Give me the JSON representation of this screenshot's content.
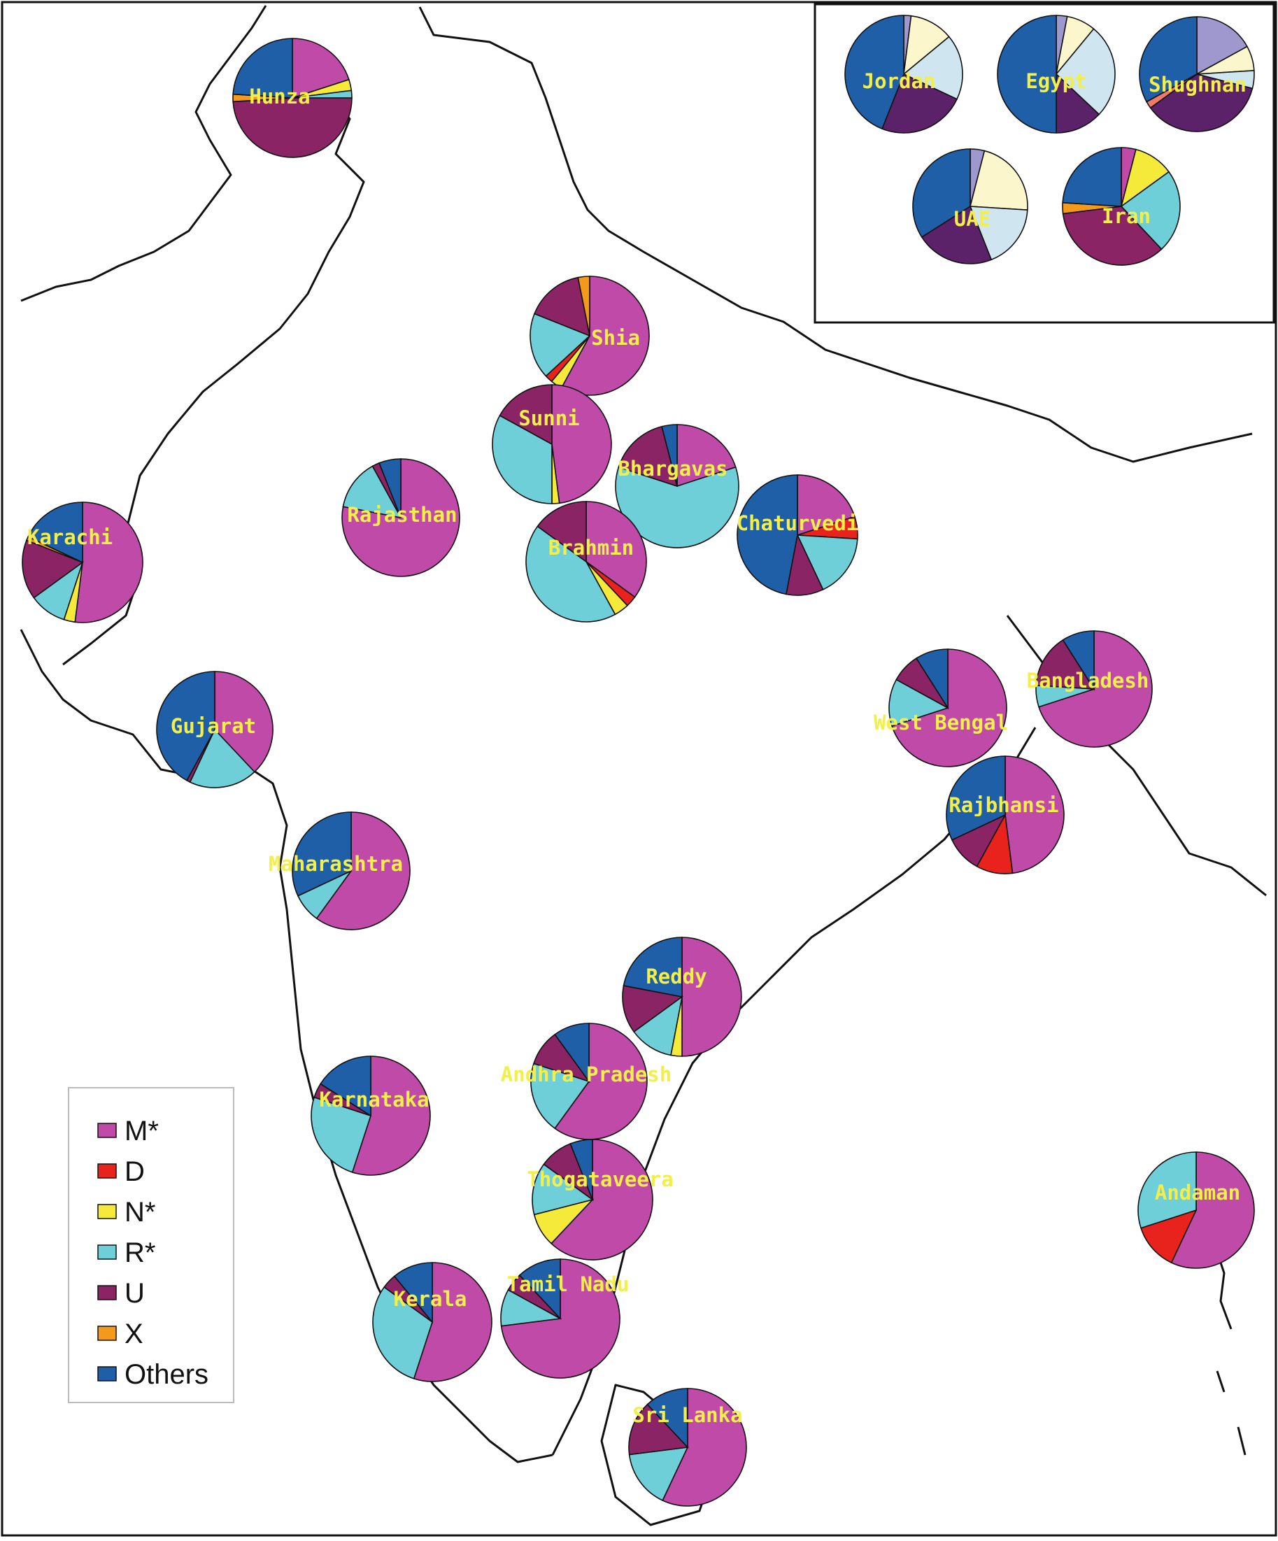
{
  "colors": {
    "M*": "#c04aa8",
    "D": "#e8231e",
    "N*": "#f5e93a",
    "R*": "#6fcfd8",
    "U": "#8a2465",
    "X": "#f39a1c",
    "Others": "#1f5fa8",
    "pale_yellow": "#fbf6cc",
    "pale_blue": "#cfe6f1",
    "lavender": "#9e98cf",
    "dark_purple": "#5b2169",
    "salmon": "#f07a6a"
  },
  "legend": {
    "items": [
      {
        "key": "M*",
        "label": "M*"
      },
      {
        "key": "D",
        "label": "D"
      },
      {
        "key": "N*",
        "label": "N*"
      },
      {
        "key": "R*",
        "label": "R*"
      },
      {
        "key": "U",
        "label": "U"
      },
      {
        "key": "X",
        "label": "X"
      },
      {
        "key": "Others",
        "label": "Others"
      }
    ]
  },
  "inset": {
    "pies": [
      {
        "name": "Jordan",
        "slices": [
          {
            "c": "lavender",
            "v": 0.02
          },
          {
            "c": "pale_yellow",
            "v": 0.12
          },
          {
            "c": "pale_blue",
            "v": 0.18
          },
          {
            "c": "dark_purple",
            "v": 0.24
          },
          {
            "c": "Others",
            "v": 0.44
          }
        ]
      },
      {
        "name": "Egypt",
        "slices": [
          {
            "c": "lavender",
            "v": 0.03
          },
          {
            "c": "pale_yellow",
            "v": 0.08
          },
          {
            "c": "pale_blue",
            "v": 0.26
          },
          {
            "c": "dark_purple",
            "v": 0.13
          },
          {
            "c": "Others",
            "v": 0.5
          }
        ]
      },
      {
        "name": "Shughnan",
        "slices": [
          {
            "c": "lavender",
            "v": 0.17
          },
          {
            "c": "pale_yellow",
            "v": 0.07
          },
          {
            "c": "pale_blue",
            "v": 0.05
          },
          {
            "c": "dark_purple",
            "v": 0.36
          },
          {
            "c": "salmon",
            "v": 0.02
          },
          {
            "c": "Others",
            "v": 0.33
          }
        ]
      },
      {
        "name": "UAE",
        "slices": [
          {
            "c": "lavender",
            "v": 0.04
          },
          {
            "c": "pale_yellow",
            "v": 0.22
          },
          {
            "c": "pale_blue",
            "v": 0.18
          },
          {
            "c": "dark_purple",
            "v": 0.22
          },
          {
            "c": "Others",
            "v": 0.34
          }
        ]
      },
      {
        "name": "Iran",
        "slices": [
          {
            "c": "M*",
            "v": 0.04
          },
          {
            "c": "N*",
            "v": 0.11
          },
          {
            "c": "R*",
            "v": 0.23
          },
          {
            "c": "U",
            "v": 0.35
          },
          {
            "c": "X",
            "v": 0.03
          },
          {
            "c": "Others",
            "v": 0.24
          }
        ]
      }
    ]
  },
  "populations": [
    {
      "name": "Hunza",
      "slices": [
        {
          "c": "M*",
          "v": 0.2
        },
        {
          "c": "N*",
          "v": 0.03
        },
        {
          "c": "R*",
          "v": 0.02
        },
        {
          "c": "U",
          "v": 0.49
        },
        {
          "c": "X",
          "v": 0.02
        },
        {
          "c": "Others",
          "v": 0.24
        }
      ]
    },
    {
      "name": "Shia",
      "slices": [
        {
          "c": "M*",
          "v": 0.55
        },
        {
          "c": "N*",
          "v": 0.03
        },
        {
          "c": "D",
          "v": 0.02
        },
        {
          "c": "R*",
          "v": 0.17
        },
        {
          "c": "U",
          "v": 0.15
        },
        {
          "c": "X",
          "v": 0.03
        }
      ]
    },
    {
      "name": "Sunni",
      "slices": [
        {
          "c": "M*",
          "v": 0.48
        },
        {
          "c": "N*",
          "v": 0.02
        },
        {
          "c": "R*",
          "v": 0.33
        },
        {
          "c": "U",
          "v": 0.17
        }
      ]
    },
    {
      "name": "Bhargavas",
      "slices": [
        {
          "c": "M*",
          "v": 0.2
        },
        {
          "c": "R*",
          "v": 0.6
        },
        {
          "c": "U",
          "v": 0.16
        },
        {
          "c": "Others",
          "v": 0.04
        }
      ]
    },
    {
      "name": "Rajasthan",
      "slices": [
        {
          "c": "M*",
          "v": 0.78
        },
        {
          "c": "R*",
          "v": 0.14
        },
        {
          "c": "U",
          "v": 0.02
        },
        {
          "c": "Others",
          "v": 0.06
        }
      ]
    },
    {
      "name": "Karachi",
      "slices": [
        {
          "c": "M*",
          "v": 0.52
        },
        {
          "c": "N*",
          "v": 0.03
        },
        {
          "c": "R*",
          "v": 0.1
        },
        {
          "c": "U",
          "v": 0.16
        },
        {
          "c": "X",
          "v": 0.01
        },
        {
          "c": "Others",
          "v": 0.18
        }
      ]
    },
    {
      "name": "Brahmin",
      "slices": [
        {
          "c": "M*",
          "v": 0.35
        },
        {
          "c": "D",
          "v": 0.03
        },
        {
          "c": "N*",
          "v": 0.04
        },
        {
          "c": "R*",
          "v": 0.43
        },
        {
          "c": "U",
          "v": 0.15
        }
      ]
    },
    {
      "name": "Chaturvedi",
      "slices": [
        {
          "c": "M*",
          "v": 0.2
        },
        {
          "c": "D",
          "v": 0.06
        },
        {
          "c": "R*",
          "v": 0.17
        },
        {
          "c": "U",
          "v": 0.1
        },
        {
          "c": "Others",
          "v": 0.47
        }
      ]
    },
    {
      "name": "Gujarat",
      "slices": [
        {
          "c": "M*",
          "v": 0.38
        },
        {
          "c": "R*",
          "v": 0.19
        },
        {
          "c": "U",
          "v": 0.01
        },
        {
          "c": "Others",
          "v": 0.42
        }
      ]
    },
    {
      "name": "West Bengal",
      "slices": [
        {
          "c": "M*",
          "v": 0.7
        },
        {
          "c": "R*",
          "v": 0.13
        },
        {
          "c": "U",
          "v": 0.08
        },
        {
          "c": "Others",
          "v": 0.09
        }
      ]
    },
    {
      "name": "Bangladesh",
      "slices": [
        {
          "c": "M*",
          "v": 0.7
        },
        {
          "c": "R*",
          "v": 0.06
        },
        {
          "c": "U",
          "v": 0.15
        },
        {
          "c": "Others",
          "v": 0.09
        }
      ]
    },
    {
      "name": "Rajbhansi",
      "slices": [
        {
          "c": "M*",
          "v": 0.48
        },
        {
          "c": "D",
          "v": 0.1
        },
        {
          "c": "U",
          "v": 0.1
        },
        {
          "c": "Others",
          "v": 0.32
        }
      ]
    },
    {
      "name": "Maharashtra",
      "slices": [
        {
          "c": "M*",
          "v": 0.6
        },
        {
          "c": "R*",
          "v": 0.08
        },
        {
          "c": "Others",
          "v": 0.32
        }
      ]
    },
    {
      "name": "Reddy",
      "slices": [
        {
          "c": "M*",
          "v": 0.5
        },
        {
          "c": "N*",
          "v": 0.03
        },
        {
          "c": "R*",
          "v": 0.12
        },
        {
          "c": "U",
          "v": 0.13
        },
        {
          "c": "Others",
          "v": 0.22
        }
      ]
    },
    {
      "name": "Andhra Pradesh",
      "slices": [
        {
          "c": "M*",
          "v": 0.6
        },
        {
          "c": "R*",
          "v": 0.2
        },
        {
          "c": "U",
          "v": 0.1
        },
        {
          "c": "Others",
          "v": 0.1
        }
      ]
    },
    {
      "name": "Karnataka",
      "slices": [
        {
          "c": "M*",
          "v": 0.55
        },
        {
          "c": "R*",
          "v": 0.25
        },
        {
          "c": "U",
          "v": 0.04
        },
        {
          "c": "Others",
          "v": 0.16
        }
      ]
    },
    {
      "name": "Thogataveera",
      "slices": [
        {
          "c": "M*",
          "v": 0.62
        },
        {
          "c": "N*",
          "v": 0.09
        },
        {
          "c": "R*",
          "v": 0.14
        },
        {
          "c": "U",
          "v": 0.09
        },
        {
          "c": "Others",
          "v": 0.06
        }
      ]
    },
    {
      "name": "Andaman",
      "slices": [
        {
          "c": "M*",
          "v": 0.57
        },
        {
          "c": "D",
          "v": 0.13
        },
        {
          "c": "R*",
          "v": 0.3
        }
      ]
    },
    {
      "name": "Tamil Nadu",
      "slices": [
        {
          "c": "M*",
          "v": 0.73
        },
        {
          "c": "R*",
          "v": 0.1
        },
        {
          "c": "U",
          "v": 0.05
        },
        {
          "c": "Others",
          "v": 0.12
        }
      ]
    },
    {
      "name": "Kerala",
      "slices": [
        {
          "c": "M*",
          "v": 0.55
        },
        {
          "c": "R*",
          "v": 0.3
        },
        {
          "c": "U",
          "v": 0.04
        },
        {
          "c": "Others",
          "v": 0.11
        }
      ]
    },
    {
      "name": "Sri Lanka",
      "slices": [
        {
          "c": "M*",
          "v": 0.57
        },
        {
          "c": "R*",
          "v": 0.16
        },
        {
          "c": "U",
          "v": 0.15
        },
        {
          "c": "Others",
          "v": 0.12
        }
      ]
    }
  ]
}
